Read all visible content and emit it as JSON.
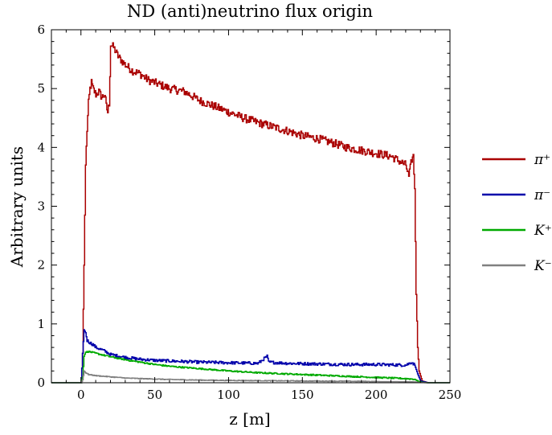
{
  "chart_data": {
    "type": "line",
    "title": "ND (anti)neutrino flux origin",
    "xlabel": "z [m]",
    "ylabel": "Arbitrary units",
    "xlim": [
      -20,
      250
    ],
    "ylim": [
      0,
      6
    ],
    "x_ticks": [
      "0",
      "50",
      "100",
      "150",
      "200",
      "250"
    ],
    "y_ticks": [
      "0",
      "1",
      "2",
      "3",
      "4",
      "5",
      "6"
    ],
    "legend_position": "right",
    "series": [
      {
        "name": "π⁺",
        "color": "#aa0000",
        "points": [
          [
            -20,
            0
          ],
          [
            0,
            0
          ],
          [
            1,
            0.5
          ],
          [
            2,
            2.0
          ],
          [
            3,
            3.7
          ],
          [
            4,
            4.3
          ],
          [
            5,
            4.75
          ],
          [
            6,
            5.0
          ],
          [
            7,
            5.1
          ],
          [
            8,
            5.0
          ],
          [
            10,
            4.9
          ],
          [
            12,
            4.95
          ],
          [
            14,
            4.85
          ],
          [
            16,
            4.9
          ],
          [
            17,
            4.7
          ],
          [
            18,
            4.6
          ],
          [
            19,
            4.75
          ],
          [
            20,
            5.75
          ],
          [
            22,
            5.7
          ],
          [
            25,
            5.55
          ],
          [
            30,
            5.4
          ],
          [
            35,
            5.3
          ],
          [
            40,
            5.25
          ],
          [
            45,
            5.15
          ],
          [
            50,
            5.1
          ],
          [
            60,
            5.0
          ],
          [
            70,
            4.95
          ],
          [
            80,
            4.8
          ],
          [
            90,
            4.7
          ],
          [
            100,
            4.6
          ],
          [
            110,
            4.5
          ],
          [
            120,
            4.42
          ],
          [
            130,
            4.35
          ],
          [
            140,
            4.28
          ],
          [
            150,
            4.2
          ],
          [
            160,
            4.15
          ],
          [
            170,
            4.08
          ],
          [
            180,
            4.0
          ],
          [
            190,
            3.95
          ],
          [
            200,
            3.9
          ],
          [
            210,
            3.85
          ],
          [
            220,
            3.7
          ],
          [
            222,
            3.5
          ],
          [
            224,
            3.8
          ],
          [
            225,
            3.85
          ],
          [
            226,
            3.3
          ],
          [
            227,
            1.5
          ],
          [
            228,
            0.6
          ],
          [
            229,
            0.2
          ],
          [
            231,
            0.03
          ],
          [
            235,
            0
          ],
          [
            250,
            0
          ]
        ]
      },
      {
        "name": "π⁻",
        "color": "#0000aa",
        "points": [
          [
            -20,
            0
          ],
          [
            0,
            0
          ],
          [
            1,
            0.5
          ],
          [
            2,
            0.9
          ],
          [
            3,
            0.85
          ],
          [
            4,
            0.72
          ],
          [
            6,
            0.68
          ],
          [
            8,
            0.65
          ],
          [
            10,
            0.6
          ],
          [
            15,
            0.55
          ],
          [
            20,
            0.48
          ],
          [
            30,
            0.43
          ],
          [
            40,
            0.4
          ],
          [
            50,
            0.38
          ],
          [
            60,
            0.37
          ],
          [
            80,
            0.35
          ],
          [
            100,
            0.34
          ],
          [
            120,
            0.33
          ],
          [
            126,
            0.45
          ],
          [
            127,
            0.35
          ],
          [
            140,
            0.33
          ],
          [
            160,
            0.32
          ],
          [
            180,
            0.31
          ],
          [
            200,
            0.31
          ],
          [
            220,
            0.3
          ],
          [
            224,
            0.35
          ],
          [
            226,
            0.3
          ],
          [
            228,
            0.15
          ],
          [
            230,
            0.03
          ],
          [
            235,
            0
          ],
          [
            250,
            0
          ]
        ]
      },
      {
        "name": "K⁺",
        "color": "#00aa00",
        "points": [
          [
            -20,
            0
          ],
          [
            0,
            0
          ],
          [
            1,
            0.1
          ],
          [
            2,
            0.45
          ],
          [
            3,
            0.52
          ],
          [
            5,
            0.53
          ],
          [
            10,
            0.5
          ],
          [
            20,
            0.44
          ],
          [
            30,
            0.39
          ],
          [
            40,
            0.35
          ],
          [
            50,
            0.31
          ],
          [
            60,
            0.28
          ],
          [
            70,
            0.26
          ],
          [
            80,
            0.24
          ],
          [
            90,
            0.22
          ],
          [
            100,
            0.2
          ],
          [
            120,
            0.17
          ],
          [
            140,
            0.15
          ],
          [
            160,
            0.13
          ],
          [
            180,
            0.11
          ],
          [
            200,
            0.09
          ],
          [
            220,
            0.07
          ],
          [
            226,
            0.06
          ],
          [
            228,
            0.03
          ],
          [
            230,
            0.01
          ],
          [
            235,
            0
          ],
          [
            250,
            0
          ]
        ]
      },
      {
        "name": "K⁻",
        "color": "#808080",
        "points": [
          [
            -20,
            0
          ],
          [
            0,
            0
          ],
          [
            1,
            0.05
          ],
          [
            2,
            0.2
          ],
          [
            3,
            0.17
          ],
          [
            5,
            0.14
          ],
          [
            10,
            0.12
          ],
          [
            20,
            0.1
          ],
          [
            30,
            0.08
          ],
          [
            40,
            0.07
          ],
          [
            60,
            0.055
          ],
          [
            80,
            0.045
          ],
          [
            100,
            0.04
          ],
          [
            120,
            0.035
          ],
          [
            150,
            0.03
          ],
          [
            180,
            0.025
          ],
          [
            200,
            0.02
          ],
          [
            220,
            0.018
          ],
          [
            226,
            0.015
          ],
          [
            229,
            0.005
          ],
          [
            235,
            0
          ],
          [
            250,
            0
          ]
        ]
      }
    ]
  }
}
